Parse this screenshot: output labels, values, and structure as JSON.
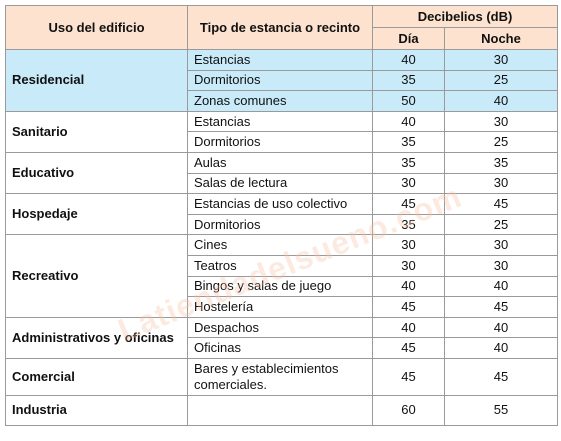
{
  "header": {
    "uso": "Uso del edificio",
    "tipo": "Tipo de estancia o recinto",
    "decibelios": "Decibelios (dB)",
    "dia": "Día",
    "noche": "Noche"
  },
  "groups": [
    {
      "name": "Residencial",
      "rows": [
        {
          "tipo": "Estancias",
          "dia": 40,
          "noche": 30
        },
        {
          "tipo": "Dormitorios",
          "dia": 35,
          "noche": 25
        },
        {
          "tipo": "Zonas comunes",
          "dia": 50,
          "noche": 40
        }
      ]
    },
    {
      "name": "Sanitario",
      "rows": [
        {
          "tipo": "Estancias",
          "dia": 40,
          "noche": 30
        },
        {
          "tipo": "Dormitorios",
          "dia": 35,
          "noche": 25
        }
      ]
    },
    {
      "name": "Educativo",
      "rows": [
        {
          "tipo": "Aulas",
          "dia": 35,
          "noche": 35
        },
        {
          "tipo": "Salas de lectura",
          "dia": 30,
          "noche": 30
        }
      ]
    },
    {
      "name": "Hospedaje",
      "rows": [
        {
          "tipo": "Estancias de uso colectivo",
          "dia": 45,
          "noche": 45
        },
        {
          "tipo": "Dormitorios",
          "dia": 35,
          "noche": 25
        }
      ]
    },
    {
      "name": "Recreativo",
      "rows": [
        {
          "tipo": "Cines",
          "dia": 30,
          "noche": 30
        },
        {
          "tipo": "Teatros",
          "dia": 30,
          "noche": 30
        },
        {
          "tipo": "Bingos y salas de juego",
          "dia": 40,
          "noche": 40
        },
        {
          "tipo": "Hostelería",
          "dia": 45,
          "noche": 45
        }
      ]
    },
    {
      "name": "Administrativos y oficinas",
      "rows": [
        {
          "tipo": "Despachos",
          "dia": 40,
          "noche": 40
        },
        {
          "tipo": "Oficinas",
          "dia": 45,
          "noche": 40
        }
      ]
    },
    {
      "name": "Comercial",
      "rows": [
        {
          "tipo": "Bares y establecimientos comerciales.",
          "dia": 45,
          "noche": 45
        }
      ]
    },
    {
      "name": "Industria",
      "rows": [
        {
          "tipo": null,
          "dia": 60,
          "noche": 55
        }
      ]
    }
  ],
  "watermark": "Latiendadelsueno.com"
}
